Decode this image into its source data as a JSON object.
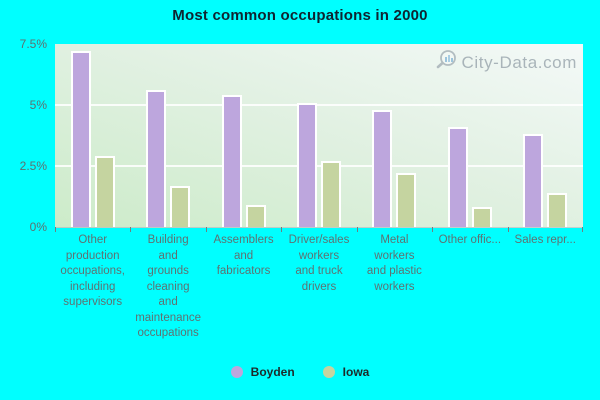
{
  "title": "Most common occupations in 2000",
  "watermark": {
    "text": "City-Data.com"
  },
  "colors": {
    "background": "#00ffff",
    "boyden_bar": "#bda6dd",
    "iowa_bar": "#c5d4a0",
    "axis_text": "#5e7272",
    "title_text": "#0f2430"
  },
  "chart_data": {
    "type": "bar",
    "title": "Most common occupations in 2000",
    "categories": [
      "Other\nproduction\noccupations,\nincluding\nsupervisors",
      "Building\nand\ngrounds\ncleaning\nand\nmaintenance\noccupations",
      "Assemblers\nand\nfabricators",
      "Driver/sales\nworkers\nand truck\ndrivers",
      "Metal\nworkers\nand plastic\nworkers",
      "Other offic...",
      "Sales repr..."
    ],
    "series": [
      {
        "name": "Boyden",
        "color": "#bda6dd",
        "values": [
          7.2,
          5.6,
          5.4,
          5.1,
          4.8,
          4.1,
          3.8
        ]
      },
      {
        "name": "Iowa",
        "color": "#c5d4a0",
        "values": [
          2.9,
          1.7,
          0.9,
          2.7,
          2.2,
          0.8,
          1.4
        ]
      }
    ],
    "xlabel": "",
    "ylabel": "",
    "ylim": [
      0,
      7.5
    ],
    "y_ticks": [
      {
        "value": 0,
        "label": "0%"
      },
      {
        "value": 2.5,
        "label": "2.5%"
      },
      {
        "value": 5,
        "label": "5%"
      },
      {
        "value": 7.5,
        "label": "7.5%"
      }
    ],
    "grid": "horizontal-white",
    "legend_position": "bottom"
  }
}
